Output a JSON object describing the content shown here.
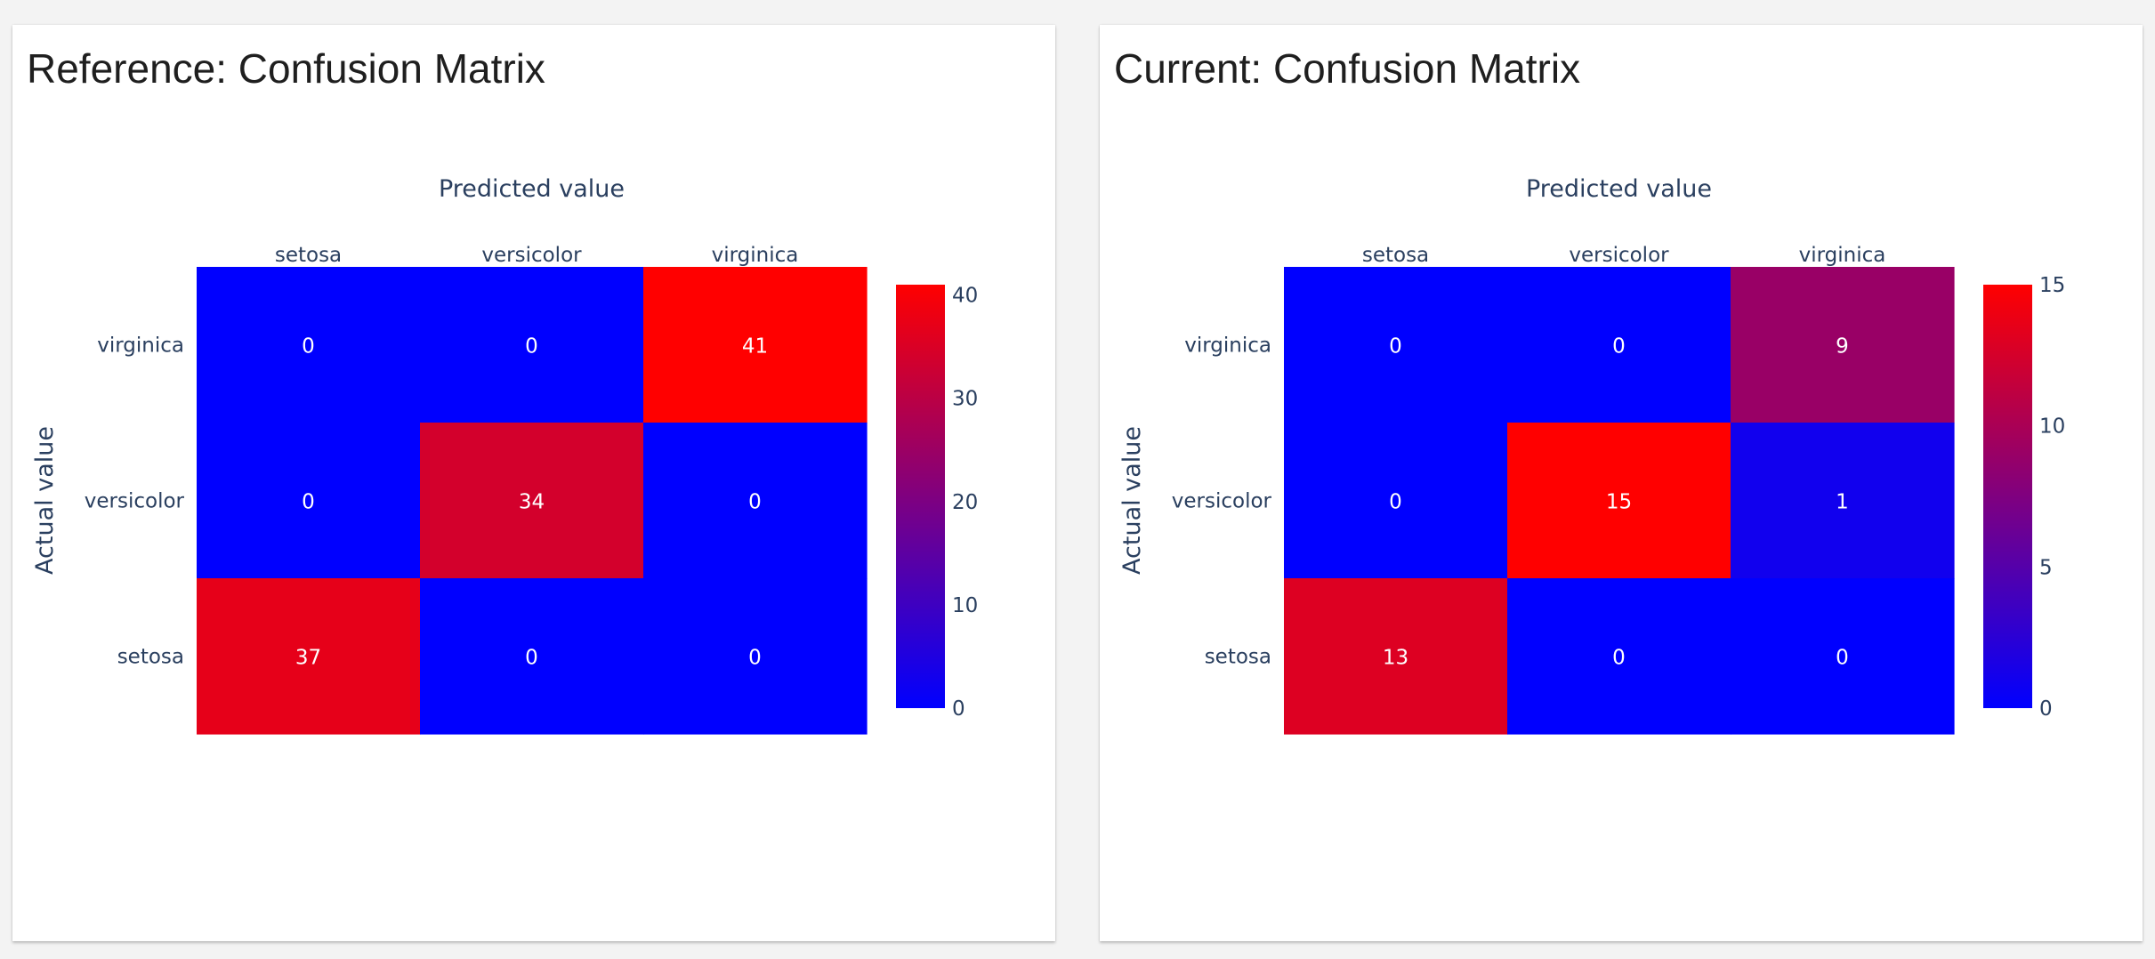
{
  "chart_data": [
    {
      "type": "heatmap",
      "title": "Reference: Confusion Matrix",
      "xlabel": "Predicted value",
      "ylabel": "Actual value",
      "x_categories": [
        "setosa",
        "versicolor",
        "virginica"
      ],
      "y_categories": [
        "virginica",
        "versicolor",
        "setosa"
      ],
      "z": [
        [
          0,
          0,
          41
        ],
        [
          0,
          34,
          0
        ],
        [
          37,
          0,
          0
        ]
      ],
      "colorscale": [
        "#0000ff",
        "#ff0000"
      ],
      "zrange": [
        0,
        41
      ],
      "colorbar_ticks": [
        0,
        10,
        20,
        30,
        40
      ]
    },
    {
      "type": "heatmap",
      "title": "Current: Confusion Matrix",
      "xlabel": "Predicted value",
      "ylabel": "Actual value",
      "x_categories": [
        "setosa",
        "versicolor",
        "virginica"
      ],
      "y_categories": [
        "virginica",
        "versicolor",
        "setosa"
      ],
      "z": [
        [
          0,
          0,
          9
        ],
        [
          0,
          15,
          1
        ],
        [
          13,
          0,
          0
        ]
      ],
      "colorscale": [
        "#0000ff",
        "#ff0000"
      ],
      "zrange": [
        0,
        15
      ],
      "colorbar_ticks": [
        0,
        5,
        10,
        15
      ]
    }
  ]
}
